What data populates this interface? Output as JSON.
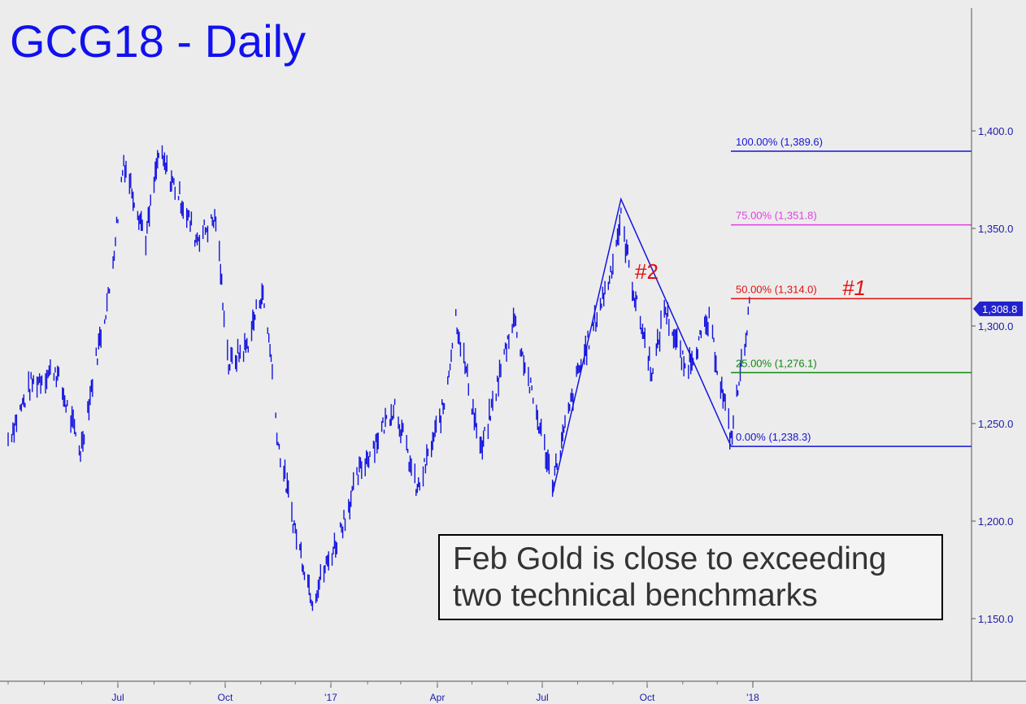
{
  "chart_data": {
    "type": "bar",
    "title": "GCG18 - Daily",
    "ylim": [
      1123,
      1480
    ],
    "y_ticks": [
      "1,150.0",
      "1,200.0",
      "1,250.0",
      "1,300.0",
      "1,350.0",
      "1,400.0"
    ],
    "x_ticks": [
      "Jul",
      "Oct",
      "'17",
      "Apr",
      "Jul",
      "Oct",
      "'18"
    ],
    "last_price_label": "1,308.8",
    "last_price": 1308.8,
    "fib_levels": [
      {
        "label": "100.00% (1,389.6)",
        "value": 1389.6,
        "color": "#1414d8"
      },
      {
        "label": "75.00% (1,351.8)",
        "value": 1351.8,
        "color": "#e040e0"
      },
      {
        "label": "50.00% (1,314.0)",
        "value": 1314.0,
        "color": "#e01010"
      },
      {
        "label": "25.00% (1,276.1)",
        "value": 1276.1,
        "color": "#118811"
      },
      {
        "label": "0.00% (1,238.3)",
        "value": 1238.3,
        "color": "#1414d8"
      }
    ],
    "markers": [
      {
        "label": "#2",
        "color": "#e01010"
      },
      {
        "label": "#1",
        "color": "#e01010"
      }
    ],
    "pattern_points": [
      {
        "date": "2017-07-10",
        "value": 1214
      },
      {
        "date": "2017-09-08",
        "value": 1365
      },
      {
        "date": "2017-12-13",
        "value": 1238.3
      }
    ],
    "price_path": [
      {
        "date": "2016-04-01",
        "value": 1242
      },
      {
        "date": "2016-04-20",
        "value": 1270
      },
      {
        "date": "2016-05-10",
        "value": 1278
      },
      {
        "date": "2016-05-31",
        "value": 1236
      },
      {
        "date": "2016-06-15",
        "value": 1290
      },
      {
        "date": "2016-06-24",
        "value": 1318
      },
      {
        "date": "2016-07-06",
        "value": 1385
      },
      {
        "date": "2016-07-25",
        "value": 1345
      },
      {
        "date": "2016-08-05",
        "value": 1388
      },
      {
        "date": "2016-08-24",
        "value": 1365
      },
      {
        "date": "2016-09-06",
        "value": 1345
      },
      {
        "date": "2016-09-23",
        "value": 1355
      },
      {
        "date": "2016-10-04",
        "value": 1280
      },
      {
        "date": "2016-10-20",
        "value": 1290
      },
      {
        "date": "2016-11-02",
        "value": 1318
      },
      {
        "date": "2016-11-09",
        "value": 1290
      },
      {
        "date": "2016-11-16",
        "value": 1240
      },
      {
        "date": "2016-12-01",
        "value": 1195
      },
      {
        "date": "2016-12-16",
        "value": 1160
      },
      {
        "date": "2017-01-06",
        "value": 1190
      },
      {
        "date": "2017-01-25",
        "value": 1225
      },
      {
        "date": "2017-02-24",
        "value": 1260
      },
      {
        "date": "2017-03-15",
        "value": 1215
      },
      {
        "date": "2017-04-07",
        "value": 1260
      },
      {
        "date": "2017-04-17",
        "value": 1305
      },
      {
        "date": "2017-05-09",
        "value": 1235
      },
      {
        "date": "2017-06-06",
        "value": 1305
      },
      {
        "date": "2017-07-10",
        "value": 1220
      },
      {
        "date": "2017-08-01",
        "value": 1275
      },
      {
        "date": "2017-08-29",
        "value": 1325
      },
      {
        "date": "2017-09-08",
        "value": 1355
      },
      {
        "date": "2017-09-20",
        "value": 1315
      },
      {
        "date": "2017-10-06",
        "value": 1275
      },
      {
        "date": "2017-10-16",
        "value": 1310
      },
      {
        "date": "2017-11-03",
        "value": 1278
      },
      {
        "date": "2017-11-24",
        "value": 1302
      },
      {
        "date": "2017-12-13",
        "value": 1242
      },
      {
        "date": "2017-12-29",
        "value": 1308.8
      }
    ]
  },
  "callout": {
    "line1": "Feb Gold is close to exceeding",
    "line2": "two technical benchmarks"
  }
}
